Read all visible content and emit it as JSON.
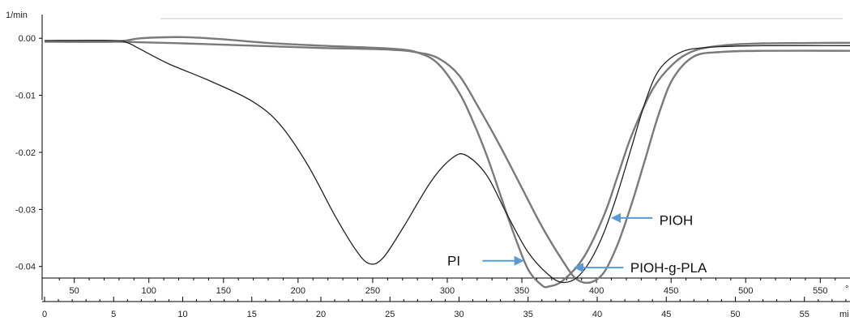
{
  "chart_data": {
    "type": "line",
    "y_unit_label": "1/min",
    "x_bottom_label": "mi",
    "x_temp_label": "°",
    "ylim": [
      -0.047,
      0.005
    ],
    "xlim": [
      0,
      58.3
    ],
    "y_ticks": [
      {
        "value": 0.0,
        "label": "0.00"
      },
      {
        "value": -0.01,
        "label": "-0.01"
      },
      {
        "value": -0.02,
        "label": "-0.02"
      },
      {
        "value": -0.03,
        "label": "-0.03"
      },
      {
        "value": -0.04,
        "label": "-0.04"
      }
    ],
    "x_time_ticks": [
      {
        "value": 0,
        "label": "0"
      },
      {
        "value": 5,
        "label": "5"
      },
      {
        "value": 10,
        "label": "10"
      },
      {
        "value": 15,
        "label": "15"
      },
      {
        "value": 20,
        "label": "20"
      },
      {
        "value": 25,
        "label": "25"
      },
      {
        "value": 30,
        "label": "30"
      },
      {
        "value": 35,
        "label": "35"
      },
      {
        "value": 40,
        "label": "40"
      },
      {
        "value": 45,
        "label": "45"
      },
      {
        "value": 50,
        "label": "50"
      },
      {
        "value": 55,
        "label": "55"
      }
    ],
    "x_temp_ticks": [
      {
        "value": 2.15,
        "label": "50"
      },
      {
        "value": 7.55,
        "label": "100"
      },
      {
        "value": 12.95,
        "label": "150"
      },
      {
        "value": 18.35,
        "label": "200"
      },
      {
        "value": 23.75,
        "label": "250"
      },
      {
        "value": 29.15,
        "label": "300"
      },
      {
        "value": 34.55,
        "label": "350"
      },
      {
        "value": 39.95,
        "label": "400"
      },
      {
        "value": 45.35,
        "label": "450"
      },
      {
        "value": 50.75,
        "label": "500"
      },
      {
        "value": 56.15,
        "label": "550"
      }
    ],
    "series": [
      {
        "color": "#7a7a7a",
        "width": 2.4,
        "points": [
          [
            0,
            -0.0006
          ],
          [
            5,
            -0.0006
          ],
          [
            7,
            0.0
          ],
          [
            10,
            0.0002
          ],
          [
            13,
            -0.0002
          ],
          [
            16,
            -0.0008
          ],
          [
            20,
            -0.0013
          ],
          [
            25,
            -0.0018
          ],
          [
            27,
            -0.0025
          ],
          [
            28.5,
            -0.0045
          ],
          [
            30,
            -0.0095
          ],
          [
            31,
            -0.0145
          ],
          [
            32,
            -0.0205
          ],
          [
            33,
            -0.0275
          ],
          [
            34,
            -0.0345
          ],
          [
            35,
            -0.0405
          ],
          [
            36,
            -0.0433
          ],
          [
            36.5,
            -0.0435
          ],
          [
            37.5,
            -0.0425
          ],
          [
            39,
            -0.0385
          ],
          [
            40.5,
            -0.031
          ],
          [
            41.5,
            -0.024
          ],
          [
            42.5,
            -0.017
          ],
          [
            44,
            -0.009
          ],
          [
            45.5,
            -0.0045
          ],
          [
            47,
            -0.0022
          ],
          [
            49,
            -0.0013
          ],
          [
            52,
            -0.0009
          ],
          [
            58.3,
            -0.0008
          ]
        ]
      },
      {
        "color": "#7a7a7a",
        "width": 2.4,
        "points": [
          [
            0,
            -0.0006
          ],
          [
            5,
            -0.0006
          ],
          [
            10,
            -0.0009
          ],
          [
            15,
            -0.0013
          ],
          [
            20,
            -0.0017
          ],
          [
            25,
            -0.002
          ],
          [
            27,
            -0.0025
          ],
          [
            28.5,
            -0.0035
          ],
          [
            30,
            -0.0065
          ],
          [
            31.5,
            -0.0125
          ],
          [
            33,
            -0.019
          ],
          [
            34.5,
            -0.026
          ],
          [
            36,
            -0.033
          ],
          [
            37.5,
            -0.039
          ],
          [
            38.5,
            -0.0422
          ],
          [
            39.5,
            -0.0428
          ],
          [
            40.5,
            -0.041
          ],
          [
            41.5,
            -0.036
          ],
          [
            42.5,
            -0.029
          ],
          [
            43.5,
            -0.021
          ],
          [
            44.5,
            -0.013
          ],
          [
            45.5,
            -0.007
          ],
          [
            47,
            -0.0032
          ],
          [
            49,
            -0.0024
          ],
          [
            52,
            -0.0022
          ],
          [
            58.3,
            -0.0022
          ]
        ]
      },
      {
        "color": "#222222",
        "width": 1.3,
        "points": [
          [
            0,
            -0.0004
          ],
          [
            5,
            -0.0004
          ],
          [
            6,
            -0.0008
          ],
          [
            7,
            -0.002
          ],
          [
            9,
            -0.0045
          ],
          [
            12,
            -0.0075
          ],
          [
            15,
            -0.011
          ],
          [
            17,
            -0.015
          ],
          [
            19,
            -0.022
          ],
          [
            21,
            -0.031
          ],
          [
            22.5,
            -0.037
          ],
          [
            23.5,
            -0.0395
          ],
          [
            24.5,
            -0.0385
          ],
          [
            26,
            -0.033
          ],
          [
            28,
            -0.025
          ],
          [
            29.5,
            -0.021
          ],
          [
            30.5,
            -0.0205
          ],
          [
            32,
            -0.024
          ],
          [
            33.5,
            -0.031
          ],
          [
            35,
            -0.0375
          ],
          [
            36.5,
            -0.0415
          ],
          [
            37.5,
            -0.0428
          ],
          [
            38.5,
            -0.042
          ],
          [
            39.5,
            -0.039
          ],
          [
            40.5,
            -0.034
          ],
          [
            41.5,
            -0.027
          ],
          [
            42.5,
            -0.019
          ],
          [
            43.5,
            -0.011
          ],
          [
            44.5,
            -0.0055
          ],
          [
            46,
            -0.0025
          ],
          [
            48,
            -0.0016
          ],
          [
            52,
            -0.0013
          ],
          [
            58.3,
            -0.0013
          ]
        ]
      }
    ],
    "annotations": [
      {
        "label": "PI",
        "text_x": 29.15,
        "text_y": -0.039,
        "arrow_from": [
          31.7,
          -0.039
        ],
        "arrow_to": [
          34.7,
          -0.039
        ]
      },
      {
        "label": "PIOH-g-PLA",
        "text_x": 42.4,
        "text_y": -0.0402,
        "arrow_from": [
          41.9,
          -0.0402
        ],
        "arrow_to": [
          38.3,
          -0.0402
        ]
      },
      {
        "label": "PIOH",
        "text_x": 44.5,
        "text_y": -0.0319,
        "arrow_from": [
          44.0,
          -0.0315
        ],
        "arrow_to": [
          41.0,
          -0.0315
        ]
      }
    ]
  }
}
